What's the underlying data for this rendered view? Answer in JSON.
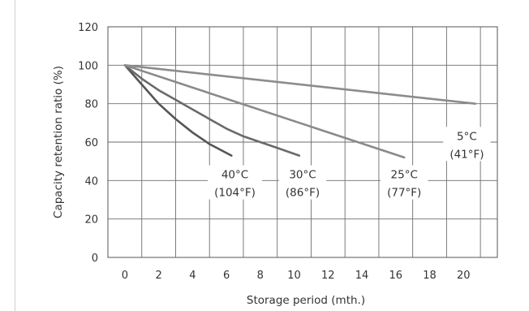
{
  "chart_data": {
    "type": "line",
    "title": "",
    "xlabel": "Storage period (mth.)",
    "ylabel": "Capacity retention ratio (%)",
    "xlim": [
      -1,
      22
    ],
    "ylim": [
      0,
      120
    ],
    "x_ticks": [
      "0",
      "2",
      "4",
      "6",
      "8",
      "10",
      "12",
      "14",
      "16",
      "18",
      "20"
    ],
    "y_ticks": [
      "0",
      "20",
      "40",
      "60",
      "80",
      "100",
      "120"
    ],
    "grid": true,
    "legend": "none",
    "line_colors": [
      "#555555",
      "#6a6a6a",
      "#8a8a8a",
      "#8c8c8c"
    ],
    "series": [
      {
        "label": [
          "40°C",
          "(104°F)"
        ],
        "label_pos": [
          6.5,
          42
        ],
        "x": [
          0,
          1,
          2,
          3,
          4,
          5,
          6.3
        ],
        "y": [
          100,
          90,
          80,
          72,
          65,
          59,
          53
        ]
      },
      {
        "label": [
          "30°C",
          "(86°F)"
        ],
        "label_pos": [
          10.5,
          42
        ],
        "x": [
          0,
          1,
          2,
          3,
          4,
          5,
          6,
          7,
          8,
          9,
          10.3
        ],
        "y": [
          100,
          93,
          87,
          82,
          77,
          72,
          67,
          63,
          60,
          57,
          53
        ]
      },
      {
        "label": [
          "25°C",
          "(77°F)"
        ],
        "label_pos": [
          16.5,
          42
        ],
        "x": [
          0,
          16.5
        ],
        "y": [
          100,
          52
        ]
      },
      {
        "label": [
          "5°C",
          "(41°F)"
        ],
        "label_pos": [
          20.2,
          62
        ],
        "x": [
          0,
          20.7
        ],
        "y": [
          100,
          80
        ]
      }
    ]
  }
}
